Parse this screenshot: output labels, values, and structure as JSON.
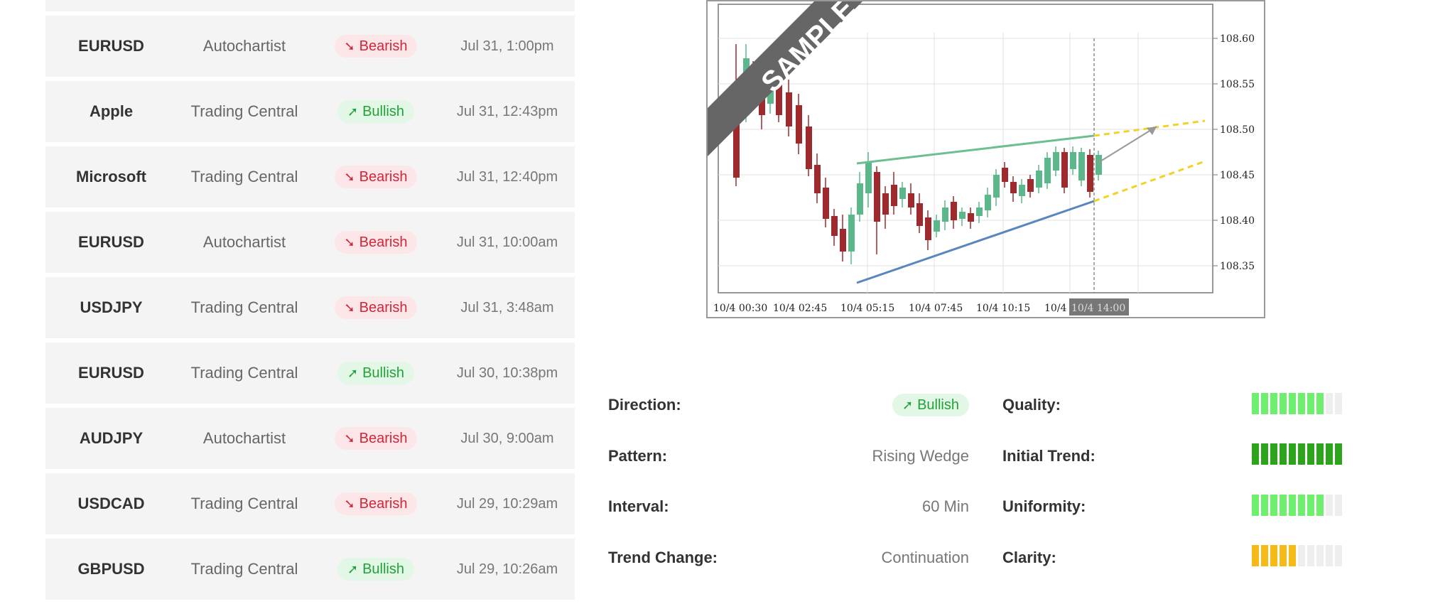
{
  "signals": [
    {
      "symbol": "",
      "provider": "",
      "direction": "",
      "time": ""
    },
    {
      "symbol": "EURUSD",
      "provider": "Autochartist",
      "direction": "Bearish",
      "time": "Jul 31, 1:00pm"
    },
    {
      "symbol": "Apple",
      "provider": "Trading Central",
      "direction": "Bullish",
      "time": "Jul 31, 12:43pm"
    },
    {
      "symbol": "Microsoft",
      "provider": "Trading Central",
      "direction": "Bearish",
      "time": "Jul 31, 12:40pm"
    },
    {
      "symbol": "EURUSD",
      "provider": "Autochartist",
      "direction": "Bearish",
      "time": "Jul 31, 10:00am"
    },
    {
      "symbol": "USDJPY",
      "provider": "Trading Central",
      "direction": "Bearish",
      "time": "Jul 31, 3:48am"
    },
    {
      "symbol": "EURUSD",
      "provider": "Trading Central",
      "direction": "Bullish",
      "time": "Jul 30, 10:38pm"
    },
    {
      "symbol": "AUDJPY",
      "provider": "Autochartist",
      "direction": "Bearish",
      "time": "Jul 30, 9:00am"
    },
    {
      "symbol": "USDCAD",
      "provider": "Trading Central",
      "direction": "Bearish",
      "time": "Jul 29, 10:29am"
    },
    {
      "symbol": "GBPUSD",
      "provider": "Trading Central",
      "direction": "Bullish",
      "time": "Jul 29, 10:26am"
    }
  ],
  "chart": {
    "watermark": "SAMPLE",
    "y_ticks": [
      "108.60",
      "108.55",
      "108.50",
      "108.45",
      "108.40",
      "108.35"
    ],
    "x_ticks": [
      "10/4 00:30",
      "10/4 02:45",
      "10/4 05:15",
      "10/4 07:45",
      "10/4 10:15",
      "10/4",
      "10/4 14:00"
    ]
  },
  "details": {
    "direction": {
      "label": "Direction:",
      "value": "Bullish"
    },
    "pattern": {
      "label": "Pattern:",
      "value": "Rising Wedge"
    },
    "interval": {
      "label": "Interval:",
      "value": "60 Min"
    },
    "trend_change": {
      "label": "Trend Change:",
      "value": "Continuation"
    },
    "quality": {
      "label": "Quality:",
      "filled": 8,
      "total": 10,
      "color": "#6ef06e"
    },
    "initial_trend": {
      "label": "Initial Trend:",
      "filled": 10,
      "total": 10,
      "color": "#2ca41c"
    },
    "uniformity": {
      "label": "Uniformity:",
      "filled": 8,
      "total": 10,
      "color": "#6ef06e"
    },
    "clarity": {
      "label": "Clarity:",
      "filled": 5,
      "total": 10,
      "color": "#f5b918"
    }
  },
  "colors": {
    "bullish_text": "#22a13b",
    "bullish_bg": "#e3f7e6",
    "bearish_text": "#d0263a",
    "bearish_bg": "#fde6e7",
    "candle_up": "#5cb88a",
    "candle_down": "#9e2a2e"
  }
}
